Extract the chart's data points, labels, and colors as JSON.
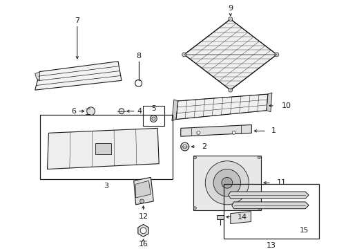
{
  "bg_color": "#ffffff",
  "line_color": "#1a1a1a",
  "gray_fill": "#e8e8e8",
  "dark_gray": "#c0c0c0"
}
